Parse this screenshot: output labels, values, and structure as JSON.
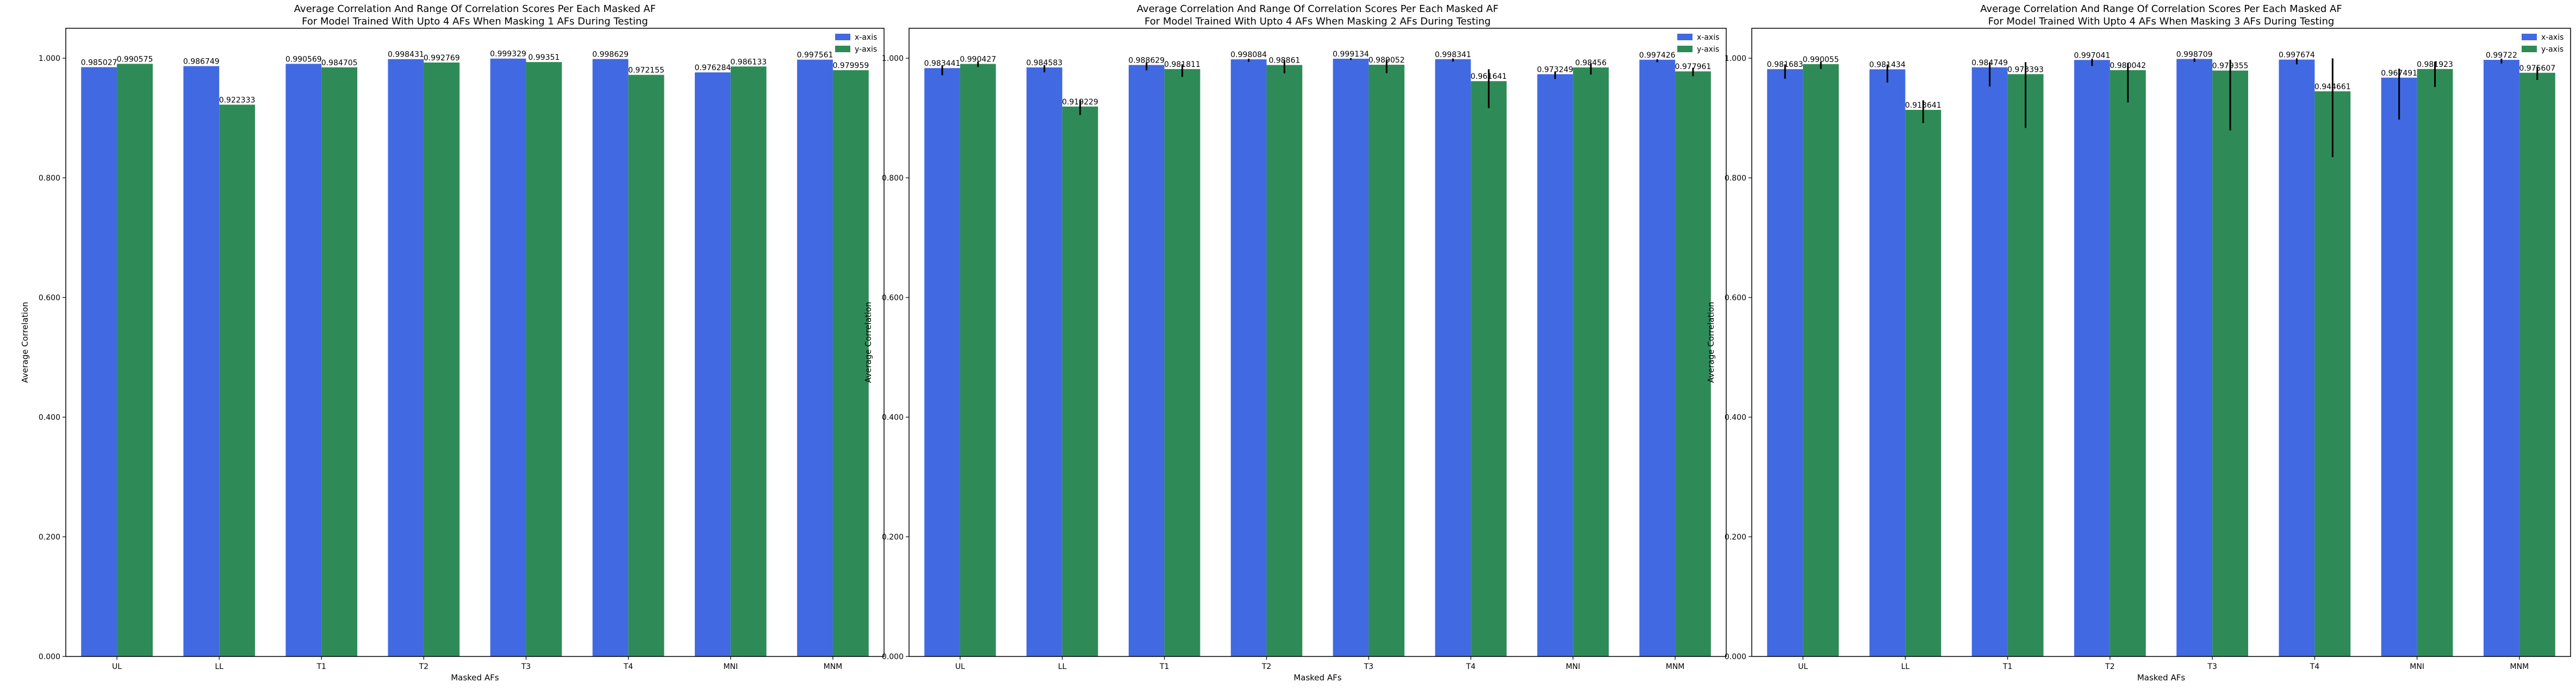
{
  "legend_colors": {
    "x": "#4169e1",
    "y": "#2e8b57"
  },
  "chart_data": [
    {
      "type": "bar",
      "title": "Average Correlation And Range Of Correlation Scores Per Each Masked AF",
      "subtitle": "For Model Trained With Upto 4 AFs When Masking 1 AFs During Testing",
      "xlabel": "Masked AFs",
      "ylabel": "Average Correlation",
      "ylim": [
        0.0,
        1.05
      ],
      "yticks": [
        "0.000",
        "0.200",
        "0.400",
        "0.600",
        "0.800",
        "1.000"
      ],
      "legend_position": "top-right",
      "grid": false,
      "categories": [
        "UL",
        "LL",
        "T1",
        "T2",
        "T3",
        "T4",
        "MNI",
        "MNM"
      ],
      "series": [
        {
          "name": "x-axis",
          "values": [
            0.985027,
            0.986749,
            0.990569,
            0.998431,
            0.999329,
            0.998629,
            0.976284,
            0.997561
          ],
          "labels": [
            "0.985027",
            "0.986749",
            "0.990569",
            "0.998431",
            "0.999329",
            "0.998629",
            "0.976284",
            "0.997561"
          ],
          "err_low": [
            0,
            0,
            0,
            0,
            0,
            0,
            0,
            0
          ],
          "err_high": [
            0,
            0,
            0,
            0,
            0,
            0,
            0,
            0
          ]
        },
        {
          "name": "y-axis",
          "values": [
            0.990575,
            0.922333,
            0.984705,
            0.992769,
            0.99351,
            0.972155,
            0.986133,
            0.979959
          ],
          "labels": [
            "0.990575",
            "0.922333",
            "0.984705",
            "0.992769",
            "0.99351",
            "0.972155",
            "0.986133",
            "0.979959"
          ],
          "err_low": [
            0,
            0,
            0,
            0,
            0,
            0,
            0,
            0
          ],
          "err_high": [
            0,
            0,
            0,
            0,
            0,
            0,
            0,
            0
          ]
        }
      ]
    },
    {
      "type": "bar",
      "title": "Average Correlation And Range Of Correlation Scores Per Each Masked AF",
      "subtitle": "For Model Trained With Upto 4 AFs When Masking 2 AFs During Testing",
      "xlabel": "Masked AFs",
      "ylabel": "Average Correlation",
      "ylim": [
        0.0,
        1.05
      ],
      "yticks": [
        "0.000",
        "0.200",
        "0.400",
        "0.600",
        "0.800",
        "1.000"
      ],
      "legend_position": "top-right",
      "grid": false,
      "categories": [
        "UL",
        "LL",
        "T1",
        "T2",
        "T3",
        "T4",
        "MNI",
        "MNM"
      ],
      "series": [
        {
          "name": "x-axis",
          "values": [
            0.983441,
            0.984583,
            0.988629,
            0.998084,
            0.999134,
            0.998341,
            0.973249,
            0.997426
          ],
          "labels": [
            "0.983441",
            "0.984583",
            "0.988629",
            "0.998084",
            "0.999134",
            "0.998341",
            "0.973249",
            "0.997426"
          ],
          "err_low": [
            0.012,
            0.008,
            0.009,
            0.004,
            0.002,
            0.004,
            0.008,
            0.004
          ],
          "err_high": [
            0.004,
            0.004,
            0.004,
            0.001,
            0.001,
            0.001,
            0.004,
            0.001
          ]
        },
        {
          "name": "y-axis",
          "values": [
            0.990427,
            0.919229,
            0.981811,
            0.98861,
            0.989052,
            0.961641,
            0.98456,
            0.977961
          ],
          "labels": [
            "0.990427",
            "0.919229",
            "0.981811",
            "0.98861",
            "0.989052",
            "0.961641",
            "0.98456",
            "0.977961"
          ],
          "err_low": [
            0.005,
            0.014,
            0.013,
            0.014,
            0.014,
            0.045,
            0.012,
            0.008
          ],
          "err_high": [
            0.004,
            0.011,
            0.008,
            0.008,
            0.008,
            0.02,
            0.007,
            0.006
          ]
        }
      ]
    },
    {
      "type": "bar",
      "title": "Average Correlation And Range Of Correlation Scores Per Each Masked AF",
      "subtitle": "For Model Trained With Upto 4 AFs When Masking 3 AFs During Testing",
      "xlabel": "Masked AFs",
      "ylabel": "Average Correlation",
      "ylim": [
        0.0,
        1.05
      ],
      "yticks": [
        "0.000",
        "0.200",
        "0.400",
        "0.600",
        "0.800",
        "1.000"
      ],
      "legend_position": "top-right",
      "grid": false,
      "categories": [
        "UL",
        "LL",
        "T1",
        "T2",
        "T3",
        "T4",
        "MNI",
        "MNM"
      ],
      "series": [
        {
          "name": "x-axis",
          "values": [
            0.981683,
            0.981434,
            0.984749,
            0.997041,
            0.998709,
            0.997674,
            0.967491,
            0.99722
          ],
          "labels": [
            "0.981683",
            "0.981434",
            "0.984749",
            "0.997041",
            "0.998709",
            "0.997674",
            "0.967491",
            "0.99722"
          ],
          "err_low": [
            0.016,
            0.022,
            0.032,
            0.01,
            0.005,
            0.008,
            0.07,
            0.006
          ],
          "err_high": [
            0.008,
            0.008,
            0.008,
            0.002,
            0.001,
            0.002,
            0.015,
            0.002
          ]
        },
        {
          "name": "y-axis",
          "values": [
            0.990055,
            0.913641,
            0.973393,
            0.980042,
            0.979355,
            0.944661,
            0.981923,
            0.975607
          ],
          "labels": [
            "0.990055",
            "0.913641",
            "0.973393",
            "0.980042",
            "0.979355",
            "0.944661",
            "0.981923",
            "0.975607"
          ],
          "err_low": [
            0.008,
            0.022,
            0.09,
            0.054,
            0.1,
            0.11,
            0.03,
            0.012
          ],
          "err_high": [
            0.004,
            0.016,
            0.02,
            0.012,
            0.018,
            0.055,
            0.012,
            0.01
          ]
        }
      ]
    }
  ]
}
